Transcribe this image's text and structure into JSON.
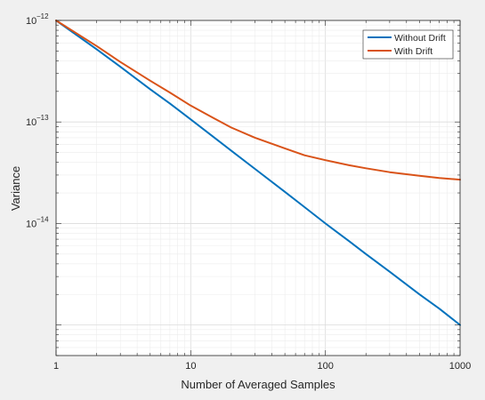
{
  "chart_data": {
    "type": "line",
    "xlabel": "Number of Averaged Samples",
    "ylabel": "Variance",
    "xscale": "log",
    "yscale": "log",
    "xlim": [
      1,
      1000
    ],
    "ylim": [
      5e-16,
      1e-12
    ],
    "grid": true,
    "minor_grid": true,
    "legend_position": "top-right",
    "x_ticks": [
      {
        "value": 1,
        "label": "1"
      },
      {
        "value": 10,
        "label": "10"
      },
      {
        "value": 100,
        "label": "100"
      },
      {
        "value": 1000,
        "label": "1000"
      }
    ],
    "y_ticks": [
      {
        "value": 1e-14,
        "base": "10",
        "exp": "−14"
      },
      {
        "value": 1e-13,
        "base": "10",
        "exp": "−13"
      },
      {
        "value": 1e-12,
        "base": "10",
        "exp": "−12"
      }
    ],
    "x": [
      1,
      2,
      3,
      5,
      7,
      10,
      15,
      20,
      30,
      50,
      70,
      100,
      150,
      200,
      300,
      500,
      700,
      1000
    ],
    "series": [
      {
        "name": "Without Drift",
        "color": "#0072bd",
        "values": [
          1e-12,
          5.2e-13,
          3.5e-13,
          2.1e-13,
          1.52e-13,
          1.06e-13,
          7e-14,
          5.2e-14,
          3.45e-14,
          2.05e-14,
          1.45e-14,
          1e-14,
          6.7e-15,
          5e-15,
          3.35e-15,
          2e-15,
          1.45e-15,
          1e-15
        ]
      },
      {
        "name": "With Drift",
        "color": "#d95319",
        "values": [
          1e-12,
          5.6e-13,
          3.9e-13,
          2.55e-13,
          1.95e-13,
          1.45e-13,
          1.08e-13,
          8.8e-14,
          7e-14,
          5.5e-14,
          4.7e-14,
          4.2e-14,
          3.75e-14,
          3.5e-14,
          3.2e-14,
          2.95e-14,
          2.8e-14,
          2.7e-14
        ]
      }
    ]
  }
}
